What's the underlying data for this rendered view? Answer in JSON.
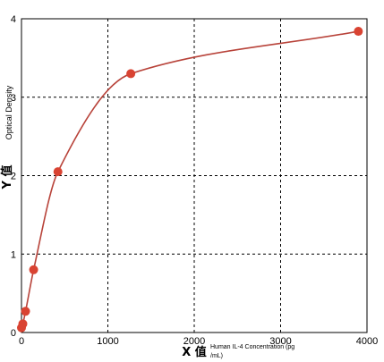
{
  "chart_data": {
    "type": "scatter",
    "ylabel": "Optical Density",
    "ylabel_marker": "Y 值",
    "xlabel_marker": "X 值",
    "xlabel_line1": "Human IL-4 Concentration (pg",
    "xlabel_line2": "/mL)",
    "xlim": [
      0,
      4000
    ],
    "ylim": [
      0,
      4
    ],
    "x_ticks": [
      0,
      1000,
      2000,
      3000,
      4000
    ],
    "y_ticks": [
      0,
      1,
      2,
      3,
      4
    ],
    "x_tick_labels": [
      "0",
      "1000",
      "2000",
      "3000",
      "4000"
    ],
    "y_tick_labels": [
      "0",
      "1",
      "2",
      "3",
      "4"
    ],
    "grid": true,
    "grid_style": "dashed",
    "series": [
      {
        "x": [
          0,
          15.6,
          46.9,
          140.6,
          421.9,
          1265.6,
          3900
        ],
        "y": [
          0.06,
          0.11,
          0.27,
          0.8,
          2.05,
          3.3,
          3.84
        ],
        "fit": "four-parameter-logistic"
      }
    ],
    "colors": {
      "curve": "#b8433a",
      "marker": "#d94332",
      "grid": "#000000",
      "axes": "#000000"
    }
  }
}
